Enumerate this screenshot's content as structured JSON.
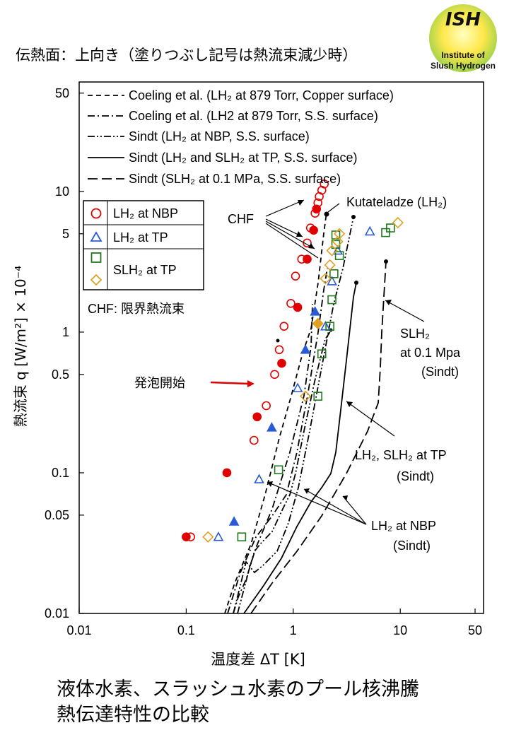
{
  "header": {
    "text": "伝熱面：上向き（塗りつぶし記号は熱流束減少時）"
  },
  "logo": {
    "line1": "ISH",
    "line2": "Institute of",
    "line3": "Slush Hydrogen"
  },
  "footer": {
    "line1": "液体水素、スラッシュ水素のプール核沸騰",
    "line2": "熱伝達特性の比較"
  },
  "colors": {
    "lh2_nbp": "#e00000",
    "lh2_tp": "#2a5bd7",
    "slh2_tp_green": "#1f7a1f",
    "slh2_tp_orange": "#e0a020"
  },
  "chart_data": {
    "type": "scatter",
    "x_scale": "log",
    "y_scale": "log",
    "xlim": [
      0.01,
      60
    ],
    "ylim": [
      0.01,
      60
    ],
    "xticks": [
      "0.01",
      "0.1",
      "1",
      "10",
      "50"
    ],
    "yticks": [
      "0.01",
      "0.05",
      "0.1",
      "0.5",
      "1",
      "5",
      "10",
      "50"
    ],
    "xlabel": "温度差 ΔT [K]",
    "ylabel": "熱流束 q [W/m²] × 10⁻⁴",
    "line_legend": [
      "Coeling et al. (LH₂ at 879 Torr, Copper surface)",
      "Coeling et al. (LH2 at 879 Torr, S.S. surface)",
      "Sindt (LH₂ at NBP, S.S. surface)",
      "Sindt (LH₂ and SLH₂ at TP, S.S. surface)",
      "Sindt (SLH₂ at 0.1 MPa, S.S. surface)"
    ],
    "marker_legend": [
      "LH₂ at NBP",
      "LH₂ at TP",
      "SLH₂ at TP"
    ],
    "legend_note": "CHF: 限界熱流束",
    "series": [
      {
        "name": "LH₂ at NBP",
        "marker": "circle",
        "color": "#e00000",
        "open": [
          [
            0.11,
            0.035
          ],
          [
            0.43,
            0.17
          ],
          [
            0.56,
            0.3
          ],
          [
            0.67,
            0.5
          ],
          [
            0.74,
            0.75
          ],
          [
            0.82,
            1.1
          ],
          [
            0.95,
            1.6
          ],
          [
            1.05,
            2.5
          ],
          [
            1.2,
            3.3
          ],
          [
            1.35,
            4.3
          ],
          [
            1.45,
            5.5
          ],
          [
            1.6,
            7
          ],
          [
            1.7,
            8.3
          ],
          [
            1.75,
            9.2
          ],
          [
            1.85,
            10.2
          ],
          [
            1.95,
            11.3
          ]
        ],
        "filled": [
          [
            0.1,
            0.035
          ],
          [
            0.24,
            0.1
          ],
          [
            0.46,
            0.25
          ],
          [
            0.78,
            0.6
          ],
          [
            1.1,
            1.5
          ],
          [
            1.35,
            3.3
          ],
          [
            1.55,
            5.3
          ],
          [
            1.65,
            7.5
          ]
        ]
      },
      {
        "name": "LH₂ at TP",
        "marker": "triangle",
        "color": "#2a5bd7",
        "open": [
          [
            0.2,
            0.035
          ],
          [
            0.48,
            0.09
          ],
          [
            1.1,
            0.4
          ],
          [
            2.0,
            1.1
          ],
          [
            2.3,
            2.3
          ],
          [
            2.6,
            3.8
          ],
          [
            5.2,
            5.2
          ]
        ],
        "filled": [
          [
            0.28,
            0.045
          ],
          [
            0.63,
            0.21
          ],
          [
            1.3,
            0.75
          ],
          [
            1.6,
            1.4
          ]
        ]
      },
      {
        "name": "SLH₂ at TP",
        "marker": "square",
        "color": "#1f7a1f",
        "open": [
          [
            0.33,
            0.035
          ],
          [
            0.73,
            0.105
          ],
          [
            1.7,
            0.35
          ],
          [
            1.85,
            0.7
          ],
          [
            2.2,
            1.1
          ],
          [
            2.3,
            1.7
          ],
          [
            2.4,
            2.6
          ],
          [
            2.7,
            3.5
          ],
          [
            2.5,
            4.2
          ],
          [
            2.5,
            4.9
          ],
          [
            7.3,
            5.1
          ],
          [
            8.1,
            5.5
          ]
        ]
      },
      {
        "name": "SLH₂ at TP",
        "marker": "diamond",
        "color": "#e0a020",
        "open": [
          [
            0.16,
            0.035
          ],
          [
            1.3,
            0.35
          ],
          [
            2.0,
            2.4
          ],
          [
            2.2,
            3.0
          ],
          [
            2.3,
            3.8
          ],
          [
            2.6,
            4.4
          ],
          [
            2.7,
            5.0
          ],
          [
            9.5,
            6.0
          ]
        ],
        "filled": [
          [
            1.7,
            1.15
          ]
        ]
      }
    ]
  },
  "annotations": {
    "chf": "CHF",
    "kutateladze": "Kutateladze (LH₂)",
    "onset": "発泡開始",
    "slh2_a": "SLH₂",
    "slh2_b": "at 0.1 Mpa",
    "slh2_c": "(Sindt)",
    "tp_a": "LH₂, SLH₂ at TP",
    "tp_b": "(Sindt)",
    "nbp_a": "LH₂ at NBP",
    "nbp_b": "(Sindt)"
  }
}
